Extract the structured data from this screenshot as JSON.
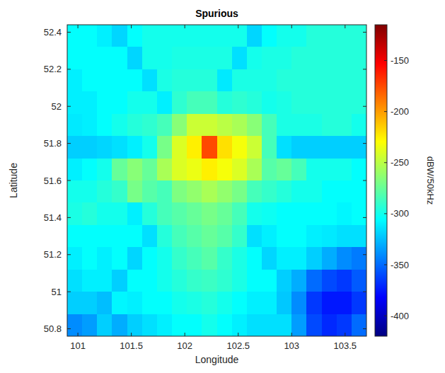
{
  "chart_data": {
    "type": "heatmap",
    "title": "Spurious",
    "x_label": "Longitude",
    "y_label": "Latitude",
    "x": [
      100.97,
      101.11,
      101.25,
      101.39,
      101.53,
      101.67,
      101.81,
      101.95,
      102.09,
      102.23,
      102.37,
      102.51,
      102.65,
      102.79,
      102.93,
      103.07,
      103.21,
      103.35,
      103.49,
      103.63
    ],
    "y": [
      52.38,
      52.26,
      52.14,
      52.02,
      51.9,
      51.78,
      51.66,
      51.54,
      51.42,
      51.3,
      51.18,
      51.06,
      50.94,
      50.82
    ],
    "values": [
      [
        -305,
        -305,
        -310,
        -318,
        -305,
        -300,
        -300,
        -300,
        -300,
        -300,
        -300,
        -300,
        -318,
        -305,
        -300,
        -300,
        -295,
        -295,
        -295,
        -295
      ],
      [
        -305,
        -305,
        -305,
        -305,
        -318,
        -300,
        -300,
        -298,
        -298,
        -298,
        -298,
        -315,
        -300,
        -298,
        -298,
        -295,
        -295,
        -295,
        -295,
        -295
      ],
      [
        -310,
        -305,
        -305,
        -305,
        -305,
        -315,
        -298,
        -295,
        -295,
        -295,
        -312,
        -298,
        -298,
        -298,
        -295,
        -295,
        -295,
        -295,
        -295,
        -295
      ],
      [
        -310,
        -310,
        -305,
        -305,
        -300,
        -300,
        -310,
        -292,
        -285,
        -285,
        -295,
        -292,
        -295,
        -300,
        -298,
        -295,
        -295,
        -295,
        -295,
        -295
      ],
      [
        -312,
        -310,
        -305,
        -300,
        -295,
        -292,
        -285,
        -265,
        -245,
        -245,
        -250,
        -255,
        -265,
        -285,
        -298,
        -298,
        -298,
        -295,
        -295,
        -300
      ],
      [
        -320,
        -320,
        -318,
        -315,
        -310,
        -300,
        -270,
        -240,
        -225,
        -175,
        -220,
        -232,
        -245,
        -285,
        -315,
        -320,
        -320,
        -320,
        -320,
        -320
      ],
      [
        -310,
        -305,
        -300,
        -275,
        -265,
        -275,
        -255,
        -240,
        -235,
        -225,
        -232,
        -240,
        -255,
        -280,
        -275,
        -285,
        -300,
        -300,
        -300,
        -305
      ],
      [
        -300,
        -300,
        -295,
        -290,
        -270,
        -280,
        -285,
        -268,
        -262,
        -255,
        -262,
        -270,
        -285,
        -290,
        -295,
        -300,
        -300,
        -305,
        -305,
        -305
      ],
      [
        -298,
        -295,
        -300,
        -300,
        -310,
        -295,
        -285,
        -280,
        -275,
        -270,
        -275,
        -285,
        -300,
        -302,
        -305,
        -305,
        -305,
        -305,
        -308,
        -305
      ],
      [
        -305,
        -305,
        -305,
        -305,
        -305,
        -315,
        -295,
        -285,
        -280,
        -275,
        -280,
        -290,
        -315,
        -310,
        -305,
        -305,
        -310,
        -312,
        -315,
        -315
      ],
      [
        -310,
        -305,
        -310,
        -305,
        -318,
        -305,
        -300,
        -290,
        -285,
        -280,
        -290,
        -298,
        -305,
        -318,
        -310,
        -310,
        -320,
        -330,
        -340,
        -345
      ],
      [
        -315,
        -310,
        -310,
        -320,
        -305,
        -305,
        -300,
        -295,
        -290,
        -288,
        -292,
        -298,
        -305,
        -305,
        -320,
        -330,
        -350,
        -360,
        -365,
        -355
      ],
      [
        -320,
        -320,
        -325,
        -308,
        -310,
        -305,
        -305,
        -300,
        -298,
        -295,
        -300,
        -305,
        -310,
        -310,
        -322,
        -340,
        -365,
        -375,
        -375,
        -365
      ],
      [
        -340,
        -335,
        -320,
        -330,
        -320,
        -315,
        -310,
        -305,
        -305,
        -300,
        -305,
        -310,
        -315,
        -315,
        -315,
        -335,
        -360,
        -370,
        -365,
        -350
      ]
    ],
    "xlim": [
      100.9,
      103.7
    ],
    "ylim": [
      50.76,
      52.44
    ],
    "xticks": [
      101,
      101.5,
      102,
      102.5,
      103,
      103.5
    ],
    "yticks": [
      50.8,
      51,
      51.2,
      51.4,
      51.6,
      51.8,
      52,
      52.2,
      52.4
    ],
    "colorbar_label": "dBW/50kHz",
    "clim": [
      -420,
      -115
    ],
    "cticks": [
      -150,
      -200,
      -250,
      -300,
      -350,
      -400
    ],
    "grid": false
  }
}
